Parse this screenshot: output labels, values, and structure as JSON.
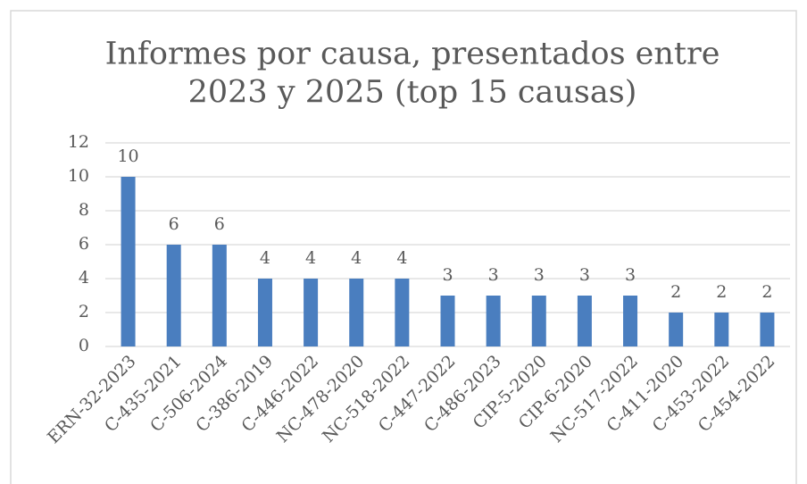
{
  "chart_data": {
    "type": "bar",
    "title": [
      "Informes por causa, presentados entre",
      "2023 y 2025 (top 15 causas)"
    ],
    "categories": [
      "ERN-32-2023",
      "C-435-2021",
      "C-506-2024",
      "C-386-2019",
      "C-446-2022",
      "NC-478-2020",
      "NC-518-2022",
      "C-447-2022",
      "C-486-2023",
      "CIP-5-2020",
      "CIP-6-2020",
      "NC-517-2022",
      "C-411-2020",
      "C-453-2022",
      "C-454-2022"
    ],
    "values": [
      10,
      6,
      6,
      4,
      4,
      4,
      4,
      3,
      3,
      3,
      3,
      3,
      2,
      2,
      2
    ],
    "color": "#4a7ebf",
    "ylim": [
      0,
      12
    ],
    "yticks": [
      0,
      2,
      4,
      6,
      8,
      10,
      12
    ],
    "grid": true,
    "data_labels": true
  }
}
